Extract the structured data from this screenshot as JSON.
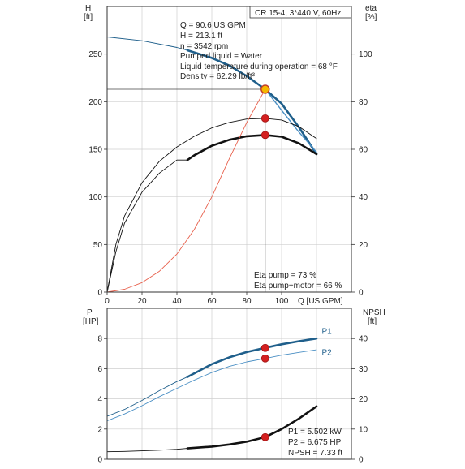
{
  "header": {
    "title": "CR 15-4, 3*440 V, 60Hz"
  },
  "duty_info": [
    "Q = 90.6 US GPM",
    "H = 213.1 ft",
    "n = 3542 rpm",
    "Pumped liquid = Water",
    "Liquid temperature during operation = 68 °F",
    "Density = 62.29 lb/ft³"
  ],
  "eta_info": [
    "Eta pump = 73 %",
    "Eta pump+motor = 66 %"
  ],
  "power_info": [
    "P1 = 5.502 kW",
    "P2 = 6.675 HP",
    "NPSH = 7.33 ft"
  ],
  "axes": {
    "top_left_label": [
      "H",
      "[ft]"
    ],
    "top_right_label": [
      "eta",
      "[%]"
    ],
    "x_label": "Q [US GPM]",
    "bottom_left_label": [
      "P",
      "[HP]"
    ],
    "bottom_right_label": [
      "NPSH",
      "[ft]"
    ]
  },
  "colors": {
    "blue_dark": "#1f5f8b",
    "blue_light": "#4a8fc4",
    "red": "#e8604c",
    "marker": "#d42020",
    "duty_marker": "#f5b800"
  },
  "chart_data": [
    {
      "type": "line",
      "title": "",
      "xlabel": "Q [US GPM]",
      "ylabel": "H [ft]",
      "y2label": "eta [%]",
      "xlim": [
        0,
        140
      ],
      "ylim": [
        0,
        300
      ],
      "y2lim": [
        0,
        120
      ],
      "xticks": [
        0,
        20,
        40,
        60,
        80,
        100
      ],
      "yticks": [
        0,
        50,
        100,
        150,
        200,
        250
      ],
      "y2ticks": [
        0,
        20,
        40,
        60,
        80,
        100
      ],
      "grid": true,
      "series": [
        {
          "axis": "left",
          "color": "blue",
          "width": "thin",
          "x": [
            0,
            20,
            40,
            46
          ],
          "y": [
            268,
            264,
            257,
            254
          ]
        },
        {
          "axis": "left",
          "color": "blue",
          "width": "thick",
          "x": [
            46,
            60,
            70,
            80,
            90.6,
            100,
            110,
            120
          ],
          "y": [
            254,
            246,
            238,
            227,
            213.1,
            198,
            173,
            145
          ]
        },
        {
          "axis": "left",
          "color": "steelblue",
          "width": "medium",
          "x": [
            90.6,
            100,
            110,
            120
          ],
          "y": [
            213.1,
            191,
            168,
            147
          ]
        },
        {
          "axis": "right",
          "color": "black",
          "width": "thin",
          "x": [
            0,
            5,
            10,
            20,
            30,
            40,
            50,
            60,
            70,
            80,
            90.6,
            100,
            110,
            120
          ],
          "y": [
            0,
            20,
            32,
            46,
            55,
            61,
            65.5,
            69,
            71.3,
            72.7,
            73,
            72.3,
            69.5,
            64.5
          ]
        },
        {
          "axis": "right",
          "color": "black",
          "width": "thin",
          "x": [
            0,
            5,
            10,
            20,
            30,
            40,
            46
          ],
          "y": [
            0,
            17,
            29,
            42,
            50,
            55.5,
            55.5
          ]
        },
        {
          "axis": "right",
          "color": "black",
          "width": "thick",
          "x": [
            46,
            50,
            60,
            70,
            80,
            90.6,
            100,
            110,
            120
          ],
          "y": [
            55.5,
            57.5,
            61.5,
            64,
            65.5,
            66,
            65.3,
            62.5,
            58
          ]
        },
        {
          "axis": "left",
          "color": "red",
          "width": "thin",
          "x": [
            0,
            10,
            20,
            30,
            40,
            50,
            60,
            70,
            80,
            90.6
          ],
          "y": [
            0,
            3,
            10,
            22,
            40,
            66,
            100,
            140,
            178,
            213.1
          ]
        }
      ],
      "markers": [
        {
          "axis": "left",
          "x": 90.6,
          "y": 213.1,
          "kind": "duty"
        },
        {
          "axis": "right",
          "x": 90.6,
          "y": 73
        },
        {
          "axis": "right",
          "x": 90.6,
          "y": 66
        }
      ],
      "guides": {
        "x": 90.6,
        "y": 213.1
      }
    },
    {
      "type": "line",
      "title": "",
      "ylabel": "P [HP]",
      "y2label": "NPSH [ft]",
      "xlim": [
        0,
        140
      ],
      "ylim": [
        0,
        10
      ],
      "y2lim": [
        0,
        50
      ],
      "yticks": [
        0,
        2,
        4,
        6,
        8
      ],
      "y2ticks": [
        0,
        10,
        20,
        30,
        40
      ],
      "grid": true,
      "series": [
        {
          "name": "P1",
          "axis": "left",
          "color": "blue",
          "width": "thin",
          "x": [
            0,
            10,
            20,
            30,
            40,
            46
          ],
          "y": [
            2.85,
            3.3,
            3.9,
            4.55,
            5.15,
            5.45
          ]
        },
        {
          "name": "P1",
          "axis": "left",
          "color": "blue",
          "width": "thick",
          "x": [
            46,
            60,
            70,
            80,
            90.6,
            100,
            110,
            120
          ],
          "y": [
            5.45,
            6.3,
            6.75,
            7.1,
            7.38,
            7.62,
            7.82,
            8.0
          ]
        },
        {
          "name": "P2",
          "axis": "left",
          "color": "steelblue",
          "width": "thin",
          "x": [
            0,
            10,
            20,
            30,
            40,
            50,
            60,
            70,
            80,
            90.6,
            100,
            110,
            120
          ],
          "y": [
            2.55,
            3.0,
            3.55,
            4.15,
            4.7,
            5.25,
            5.75,
            6.15,
            6.45,
            6.68,
            6.9,
            7.08,
            7.25
          ]
        },
        {
          "axis": "right",
          "color": "black",
          "width": "thin",
          "x": [
            0,
            10,
            20,
            30,
            40,
            46
          ],
          "y": [
            2.5,
            2.6,
            2.8,
            3.0,
            3.3,
            3.6
          ]
        },
        {
          "axis": "right",
          "color": "black",
          "width": "thick",
          "x": [
            46,
            60,
            70,
            80,
            90.6,
            100,
            110,
            120
          ],
          "y": [
            3.6,
            4.2,
            4.9,
            5.8,
            7.33,
            10,
            13.5,
            17.5
          ]
        }
      ],
      "series_labels": [
        {
          "text": "P1",
          "axis": "left",
          "x": 123,
          "y": 8.3
        },
        {
          "text": "P2",
          "axis": "left",
          "x": 123,
          "y": 6.9
        }
      ],
      "markers": [
        {
          "axis": "left",
          "x": 90.6,
          "y": 7.38
        },
        {
          "axis": "left",
          "x": 90.6,
          "y": 6.68
        },
        {
          "axis": "right",
          "x": 90.6,
          "y": 7.33
        }
      ]
    }
  ]
}
